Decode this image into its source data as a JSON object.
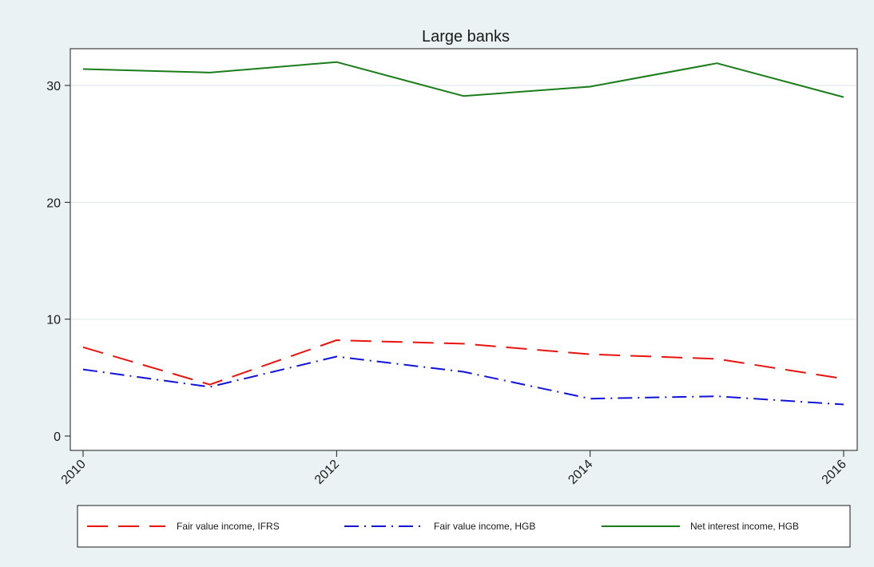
{
  "chart_data": {
    "type": "line",
    "title": "Large banks",
    "xlabel": "",
    "ylabel": "",
    "x": [
      2010,
      2011,
      2012,
      2013,
      2014,
      2015,
      2016
    ],
    "x_ticks": [
      2010,
      2012,
      2014,
      2016
    ],
    "y_ticks": [
      0,
      10,
      20,
      30
    ],
    "xlim": [
      2010,
      2016
    ],
    "ylim": [
      0,
      32
    ],
    "grid": true,
    "legend_position": "bottom",
    "series": [
      {
        "name": "Fair value income, IFRS",
        "color": "#e8140f",
        "style": "dashed",
        "values": [
          7.6,
          4.4,
          8.2,
          7.9,
          7.0,
          6.6,
          4.9
        ]
      },
      {
        "name": "Fair value income, HGB",
        "color": "#1212d9",
        "style": "dash-dot",
        "values": [
          5.7,
          4.2,
          6.8,
          5.5,
          3.2,
          3.4,
          2.7
        ]
      },
      {
        "name": "Net interest income, HGB",
        "color": "#1a7d1a",
        "style": "solid",
        "values": [
          31.4,
          31.1,
          32.0,
          29.1,
          29.9,
          31.9,
          29.0
        ]
      }
    ]
  }
}
